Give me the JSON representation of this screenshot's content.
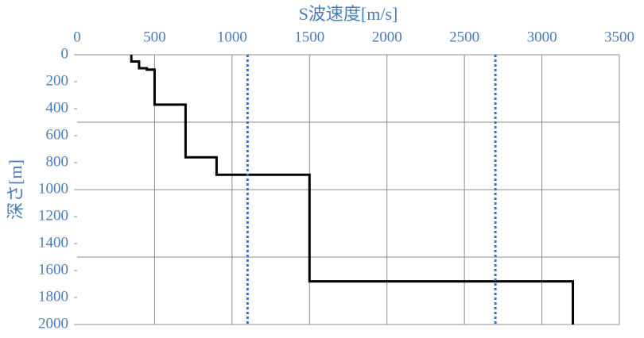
{
  "chart_data": {
    "type": "line",
    "x_title": "S波速度[m/s]",
    "y_title": "深さ[m]",
    "xlim": [
      0,
      3500
    ],
    "xticks": [
      0,
      500,
      1000,
      1500,
      2000,
      2500,
      3000,
      3500
    ],
    "ylim": [
      0,
      2000
    ],
    "y_inverted": true,
    "yticks": [
      0,
      200,
      400,
      600,
      800,
      1000,
      1200,
      1400,
      1600,
      1800,
      2000
    ],
    "ygrid": [
      500,
      1000,
      1500,
      2000
    ],
    "grid": true,
    "series": [
      {
        "color": "#000000",
        "linestyle": "solid",
        "x": [
          350,
          350,
          400,
          400,
          450,
          450,
          500,
          500,
          700,
          700,
          900,
          900,
          1500,
          1500,
          3200,
          3200
        ],
        "y": [
          0,
          50,
          50,
          100,
          100,
          110,
          110,
          370,
          370,
          760,
          760,
          890,
          890,
          1680,
          1680,
          2000
        ]
      },
      {
        "color": "#2f6fd6",
        "linestyle": "dotted",
        "x": [
          1100,
          1100
        ],
        "y": [
          0,
          2000
        ]
      },
      {
        "color": "#2f6fd6",
        "linestyle": "dotted",
        "x": [
          2700,
          2700
        ],
        "y": [
          0,
          2000
        ]
      }
    ]
  }
}
